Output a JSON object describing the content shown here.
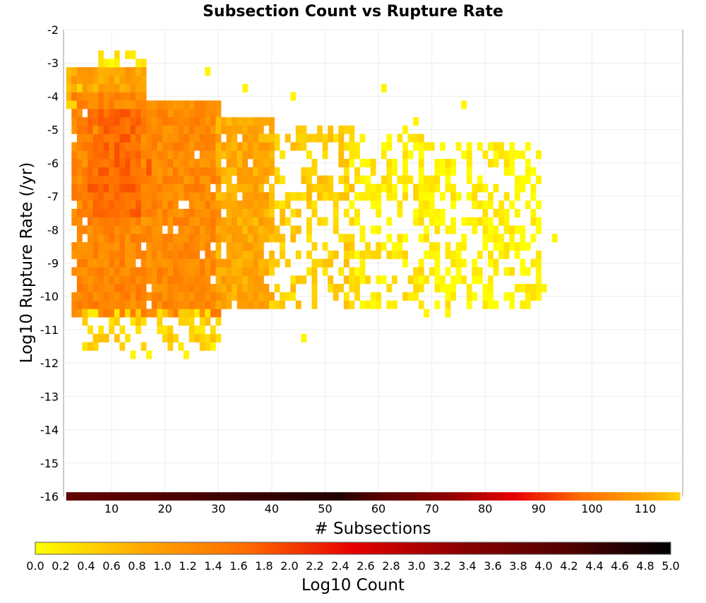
{
  "chart_data": {
    "type": "heatmap",
    "title": "Subsection Count vs Rupture Rate",
    "xlabel": "# Subsections",
    "ylabel": "Log10 Rupture Rate (/yr)",
    "xlim": [
      1,
      117
    ],
    "ylim": [
      -16,
      -2
    ],
    "x_ticks": [
      "10",
      "20",
      "30",
      "40",
      "50",
      "60",
      "70",
      "80",
      "90",
      "100",
      "110"
    ],
    "y_ticks": [
      "-2",
      "-3",
      "-4",
      "-5",
      "-6",
      "-7",
      "-8",
      "-9",
      "-10",
      "-11",
      "-12",
      "-13",
      "-14",
      "-15",
      "-16"
    ],
    "grid": true,
    "colorbar": {
      "label": "Log10 Count",
      "range": [
        0,
        5
      ],
      "ticks": [
        "0.0",
        "0.2",
        "0.4",
        "0.6",
        "0.8",
        "1.0",
        "1.2",
        "1.4",
        "1.6",
        "1.8",
        "2.0",
        "2.2",
        "2.4",
        "2.6",
        "2.8",
        "3.0",
        "3.2",
        "3.4",
        "3.6",
        "3.8",
        "4.0",
        "4.2",
        "4.4",
        "4.6",
        "4.8",
        "5.0"
      ],
      "stops": [
        "#ffff00",
        "#ffaa00",
        "#ff6a00",
        "#e60000",
        "#8c0000",
        "#550000",
        "#000000"
      ]
    },
    "cell_size": {
      "dx": 1,
      "dy": 0.25
    },
    "bottom_row": {
      "y": -16,
      "x_range": [
        2,
        116
      ]
    },
    "density_regions": [
      {
        "x_range": [
          2,
          6
        ],
        "y_range": [
          -4.25,
          -3.25
        ],
        "log10_count": 0.5
      },
      {
        "x_range": [
          8,
          16
        ],
        "y_range": [
          -3.25,
          -2.75
        ],
        "log10_count": 0.2
      },
      {
        "x_range": [
          3,
          16
        ],
        "y_range": [
          -4.0,
          -3.25
        ],
        "log10_count": 0.9
      },
      {
        "x_range": [
          3,
          16
        ],
        "y_range": [
          -10.5,
          -4.0
        ],
        "log10_count": 1.3
      },
      {
        "x_range": [
          6,
          22
        ],
        "y_range": [
          -7.5,
          -4.5
        ],
        "log10_count": 1.65
      },
      {
        "x_range": [
          16,
          30
        ],
        "y_range": [
          -10.5,
          -4.25
        ],
        "log10_count": 1.25
      },
      {
        "x_range": [
          30,
          40
        ],
        "y_range": [
          -10.25,
          -4.75
        ],
        "log10_count": 0.85
      },
      {
        "x_range": [
          40,
          55
        ],
        "y_range": [
          -10.25,
          -5.0
        ],
        "log10_count": 0.45
      },
      {
        "x_range": [
          55,
          68
        ],
        "y_range": [
          -10.25,
          -5.25
        ],
        "log10_count": 0.2
      },
      {
        "x_range": [
          5,
          30
        ],
        "y_range": [
          -11.5,
          -10.5
        ],
        "log10_count": 0.4
      },
      {
        "x_range": [
          68,
          90
        ],
        "y_range": [
          -10.25,
          -5.5
        ],
        "log10_count": 0.1
      }
    ],
    "outlier_cells": [
      [
        28,
        -3.25
      ],
      [
        35,
        -3.75
      ],
      [
        44,
        -4.0
      ],
      [
        61,
        -3.75
      ],
      [
        67,
        -4.75
      ],
      [
        76,
        -4.25
      ],
      [
        81,
        -5.5
      ],
      [
        84,
        -6.25
      ],
      [
        86,
        -6.5
      ],
      [
        88,
        -7.25
      ],
      [
        93,
        -8.25
      ],
      [
        91,
        -9.75
      ],
      [
        85,
        -8.25
      ],
      [
        83,
        -8.25
      ],
      [
        76,
        -9.0
      ],
      [
        74,
        -8.0
      ],
      [
        73,
        -10.5
      ],
      [
        69,
        -10.5
      ],
      [
        78,
        -8.0
      ],
      [
        77,
        -6.5
      ],
      [
        75,
        -5.5
      ],
      [
        71,
        -6.0
      ],
      [
        65,
        -5.0
      ],
      [
        62,
        -5.5
      ],
      [
        46,
        -11.25
      ],
      [
        24,
        -11.75
      ],
      [
        17,
        -11.75
      ],
      [
        14,
        -11.75
      ],
      [
        29,
        -11.5
      ]
    ]
  }
}
